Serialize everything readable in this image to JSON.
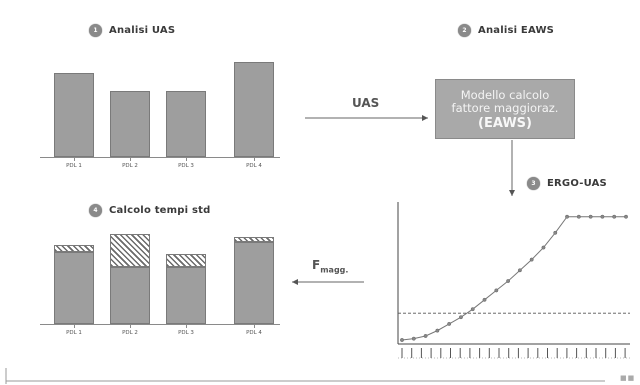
{
  "steps": {
    "s1": {
      "num": "1",
      "label": "Analisi UAS"
    },
    "s2": {
      "num": "2",
      "label": "Analisi EAWS"
    },
    "s3": {
      "num": "3",
      "label": "ERGO-UAS"
    },
    "s4": {
      "num": "4",
      "label": "Calcolo tempi std"
    }
  },
  "arrows": {
    "uas": "UAS",
    "fmagg_main": "F",
    "fmagg_sub": "magg."
  },
  "model_box": {
    "line1": "Modello calcolo",
    "line2": "fattore maggioraz.",
    "line3": "(EAWS)"
  },
  "chart_data": [
    {
      "type": "bar",
      "name_ref": "Analisi UAS",
      "categories": [
        "PDL 1",
        "PDL 2",
        "PDL 3",
        "PDL 4"
      ],
      "values": [
        0.77,
        0.61,
        0.61,
        0.87
      ]
    },
    {
      "type": "bar",
      "name_ref": "Calcolo tempi std",
      "categories": [
        "PDL 1",
        "PDL 2",
        "PDL 3",
        "PDL 4"
      ],
      "series": [
        {
          "values": [
            0.74,
            0.59,
            0.59,
            0.85
          ]
        },
        {
          "values": [
            0.07,
            0.34,
            0.13,
            0.05
          ]
        }
      ]
    },
    {
      "type": "line",
      "name_ref": "ERGO-UAS",
      "x": [
        0,
        1,
        2,
        3,
        4,
        5,
        6,
        7,
        8,
        9,
        10,
        11,
        12,
        13,
        14,
        15,
        16,
        17,
        18,
        19
      ],
      "y": [
        0.0,
        0.01,
        0.03,
        0.07,
        0.12,
        0.17,
        0.23,
        0.3,
        0.37,
        0.44,
        0.52,
        0.6,
        0.69,
        0.8,
        0.92,
        0.92,
        0.92,
        0.92,
        0.92,
        0.92
      ],
      "threshold": 0.2,
      "grid": false
    }
  ]
}
